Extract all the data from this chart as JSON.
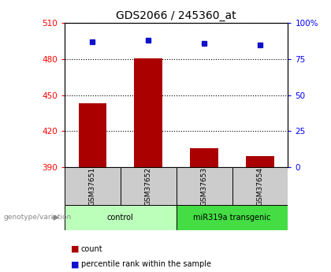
{
  "title": "GDS2066 / 245360_at",
  "samples": [
    "GSM37651",
    "GSM37652",
    "GSM37653",
    "GSM37654"
  ],
  "counts": [
    443,
    481,
    406,
    399
  ],
  "percentiles": [
    87,
    88,
    86,
    85
  ],
  "ylim_left": [
    390,
    510
  ],
  "ylim_right": [
    0,
    100
  ],
  "yticks_left": [
    390,
    420,
    450,
    480,
    510
  ],
  "yticks_right": [
    0,
    25,
    50,
    75,
    100
  ],
  "bar_color": "#aa0000",
  "dot_color": "#1111cc",
  "bar_bottom": 390,
  "groups": [
    {
      "label": "control",
      "indices": [
        0,
        1
      ],
      "color": "#bbffbb"
    },
    {
      "label": "miR319a transgenic",
      "indices": [
        2,
        3
      ],
      "color": "#44dd44"
    }
  ],
  "sample_box_color": "#cccccc",
  "genotype_label": "genotype/variation",
  "legend_count_label": "count",
  "legend_percentile_label": "percentile rank within the sample",
  "title_fontsize": 10,
  "tick_fontsize": 7.5
}
